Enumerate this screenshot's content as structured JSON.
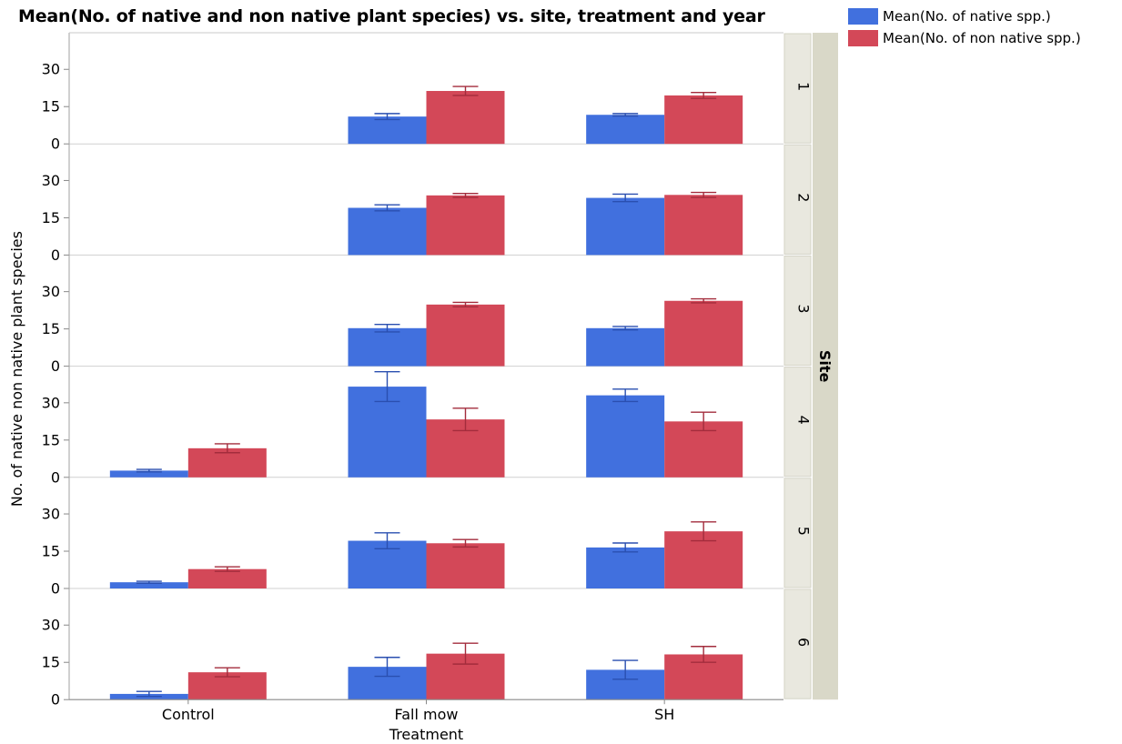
{
  "title": "Mean(No. of native and non native plant species) vs. site, treatment and year",
  "legend": [
    {
      "label": "Mean(No. of native spp.)",
      "color": "#4170DE"
    },
    {
      "label": "Mean(No. of non native spp.)",
      "color": "#D34858"
    }
  ],
  "chart_data": {
    "type": "bar",
    "title": "Mean(No. of native and non native plant species) vs. site, treatment and year",
    "xlabel": "Treatment",
    "ylabel": "No. of native non native plant species",
    "facet_label": "Site",
    "categories": [
      "Control",
      "Fall mow",
      "SH"
    ],
    "yticks": [
      0,
      15,
      30
    ],
    "ylim": [
      0,
      44
    ],
    "grid": false,
    "legend_position": "top-right",
    "series_colors": {
      "native": "#4170DE",
      "non_native": "#D34858"
    },
    "error_colors": {
      "native": "#2A4FB0",
      "non_native": "#A32C3C"
    },
    "panels": [
      {
        "site": "1",
        "native": [
          null,
          11,
          11.7
        ],
        "native_err": [
          null,
          1.2,
          0.5
        ],
        "non_native": [
          null,
          21.3,
          19.5
        ],
        "non_native_err": [
          null,
          1.8,
          1.2
        ]
      },
      {
        "site": "2",
        "native": [
          null,
          19,
          23
        ],
        "native_err": [
          null,
          1.2,
          1.5
        ],
        "non_native": [
          null,
          24,
          24.2
        ],
        "non_native_err": [
          null,
          0.8,
          1.0
        ]
      },
      {
        "site": "3",
        "native": [
          null,
          15.3,
          15.3
        ],
        "native_err": [
          null,
          1.5,
          0.7
        ],
        "non_native": [
          null,
          24.8,
          26.3
        ],
        "non_native_err": [
          null,
          0.9,
          0.8
        ]
      },
      {
        "site": "4",
        "native": [
          2.7,
          36.5,
          33
        ],
        "native_err": [
          0.5,
          6,
          2.5
        ],
        "non_native": [
          11.7,
          23.3,
          22.5
        ],
        "non_native_err": [
          1.8,
          4.5,
          3.7
        ]
      },
      {
        "site": "5",
        "native": [
          2.5,
          19.2,
          16.5
        ],
        "native_err": [
          0.4,
          3.2,
          1.8
        ],
        "non_native": [
          7.8,
          18.2,
          23
        ],
        "non_native_err": [
          0.9,
          1.5,
          3.8
        ]
      },
      {
        "site": "6",
        "native": [
          2.3,
          13.2,
          12
        ],
        "native_err": [
          1,
          3.8,
          3.8
        ],
        "non_native": [
          11,
          18.5,
          18.2
        ],
        "non_native_err": [
          1.8,
          4.2,
          3.2
        ]
      }
    ]
  }
}
